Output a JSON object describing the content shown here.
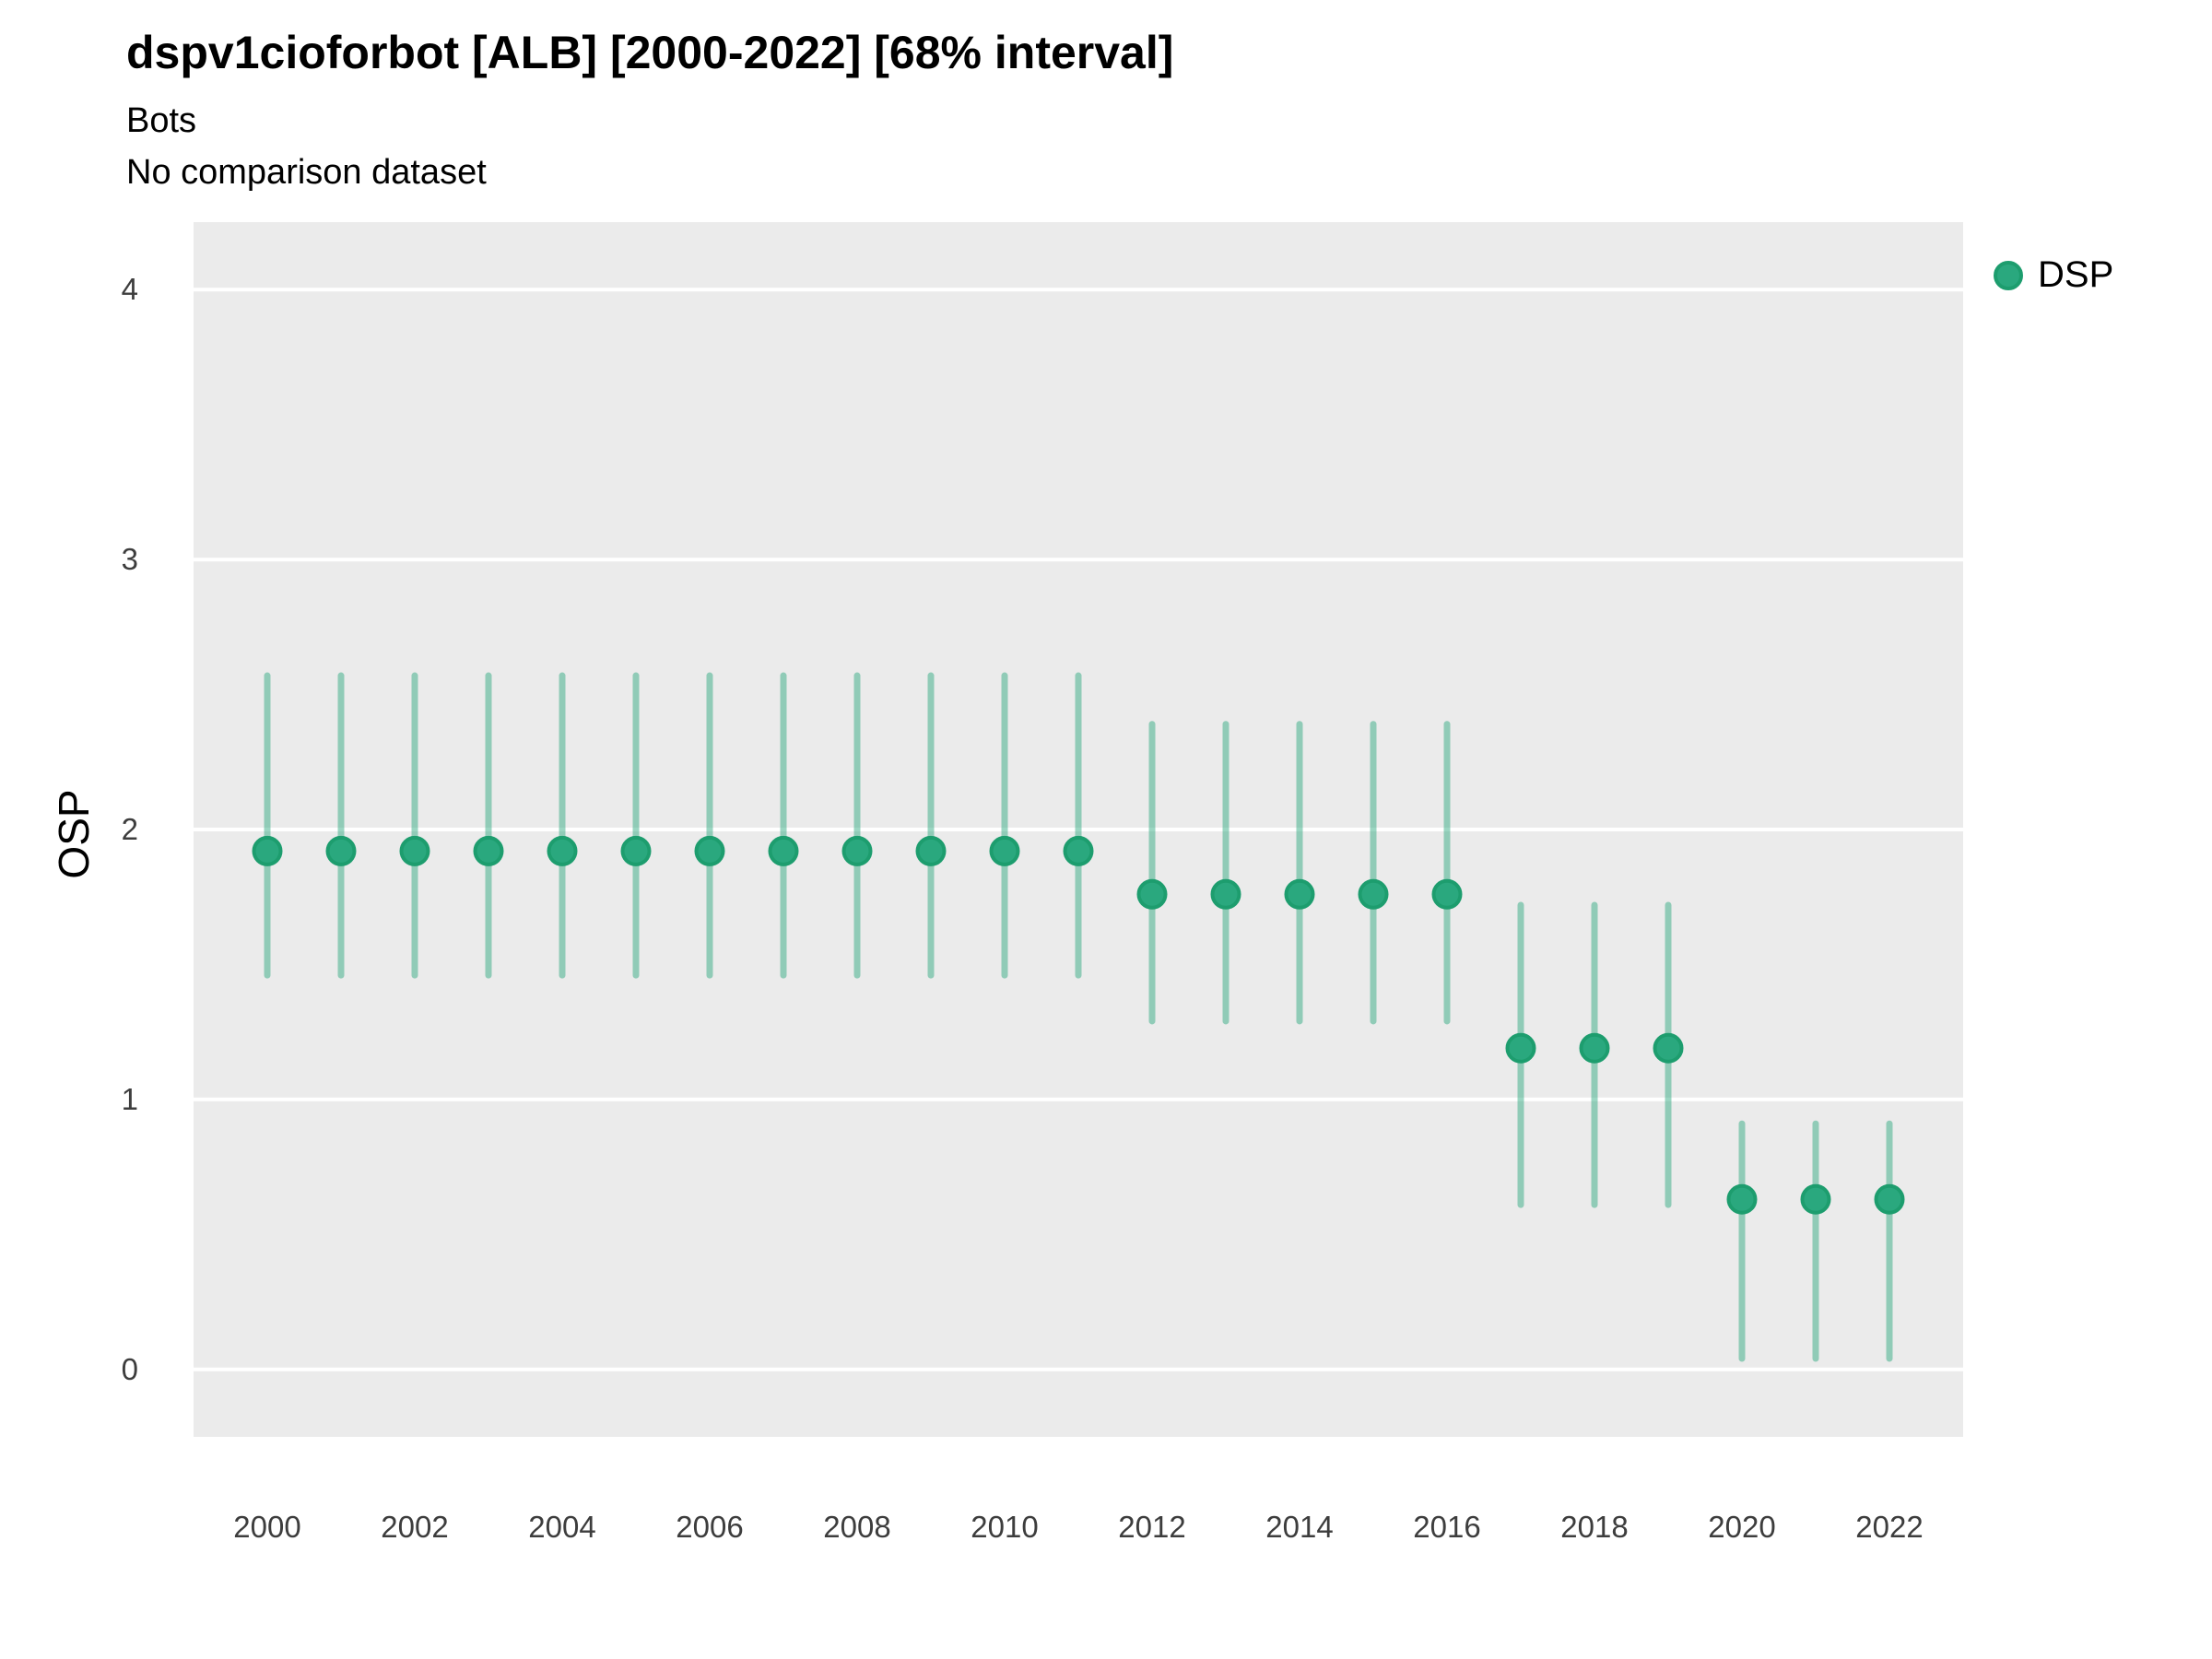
{
  "header": {
    "title": "dspv1cioforbot [ALB] [2000-2022] [68% interval]",
    "subtitle": "Bots",
    "note": "No comparison dataset"
  },
  "y_axis": {
    "label": "OSP",
    "ticks": [
      "0",
      "1",
      "2",
      "3",
      "4"
    ]
  },
  "x_axis": {
    "ticks": [
      "2000",
      "2002",
      "2004",
      "2006",
      "2008",
      "2010",
      "2012",
      "2014",
      "2016",
      "2018",
      "2020",
      "2022"
    ]
  },
  "legend": {
    "position": "right",
    "label": "DSP"
  },
  "colors": {
    "panel_bg": "#ebebeb",
    "grid": "#ffffff",
    "point_fill": "#2aa87e",
    "point_stroke": "#1d9d6e",
    "interval": "#2aa87e",
    "interval_opacity": 0.47
  },
  "chart_data": {
    "type": "pointrange",
    "title": "dspv1cioforbot [ALB] [2000-2022] [68% interval]",
    "subtitle": "Bots",
    "caption": "No comparison dataset",
    "xlabel": "",
    "ylabel": "OSP",
    "xlim": [
      1999,
      2023
    ],
    "ylim": [
      -0.25,
      4.25
    ],
    "grid": "horizontal-major-only",
    "y_gridlines": [
      0,
      1,
      2,
      3,
      4
    ],
    "x_tick_years": [
      2000,
      2002,
      2004,
      2006,
      2008,
      2010,
      2012,
      2014,
      2016,
      2018,
      2020,
      2022
    ],
    "legend_position": "right",
    "series": [
      {
        "name": "DSP",
        "interval_label": "68% interval",
        "points": [
          {
            "x": 2000,
            "y": 1.92,
            "ymin": 1.46,
            "ymax": 2.57
          },
          {
            "x": 2001,
            "y": 1.92,
            "ymin": 1.46,
            "ymax": 2.57
          },
          {
            "x": 2002,
            "y": 1.92,
            "ymin": 1.46,
            "ymax": 2.57
          },
          {
            "x": 2003,
            "y": 1.92,
            "ymin": 1.46,
            "ymax": 2.57
          },
          {
            "x": 2004,
            "y": 1.92,
            "ymin": 1.46,
            "ymax": 2.57
          },
          {
            "x": 2005,
            "y": 1.92,
            "ymin": 1.46,
            "ymax": 2.57
          },
          {
            "x": 2006,
            "y": 1.92,
            "ymin": 1.46,
            "ymax": 2.57
          },
          {
            "x": 2007,
            "y": 1.92,
            "ymin": 1.46,
            "ymax": 2.57
          },
          {
            "x": 2008,
            "y": 1.92,
            "ymin": 1.46,
            "ymax": 2.57
          },
          {
            "x": 2009,
            "y": 1.92,
            "ymin": 1.46,
            "ymax": 2.57
          },
          {
            "x": 2010,
            "y": 1.92,
            "ymin": 1.46,
            "ymax": 2.57
          },
          {
            "x": 2011,
            "y": 1.92,
            "ymin": 1.46,
            "ymax": 2.57
          },
          {
            "x": 2012,
            "y": 1.76,
            "ymin": 1.29,
            "ymax": 2.39
          },
          {
            "x": 2013,
            "y": 1.76,
            "ymin": 1.29,
            "ymax": 2.39
          },
          {
            "x": 2014,
            "y": 1.76,
            "ymin": 1.29,
            "ymax": 2.39
          },
          {
            "x": 2015,
            "y": 1.76,
            "ymin": 1.29,
            "ymax": 2.39
          },
          {
            "x": 2016,
            "y": 1.76,
            "ymin": 1.29,
            "ymax": 2.39
          },
          {
            "x": 2017,
            "y": 1.19,
            "ymin": 0.61,
            "ymax": 1.72
          },
          {
            "x": 2018,
            "y": 1.19,
            "ymin": 0.61,
            "ymax": 1.72
          },
          {
            "x": 2019,
            "y": 1.19,
            "ymin": 0.61,
            "ymax": 1.72
          },
          {
            "x": 2020,
            "y": 0.63,
            "ymin": 0.04,
            "ymax": 0.91
          },
          {
            "x": 2021,
            "y": 0.63,
            "ymin": 0.04,
            "ymax": 0.91
          },
          {
            "x": 2022,
            "y": 0.63,
            "ymin": 0.04,
            "ymax": 0.91
          }
        ]
      }
    ]
  }
}
